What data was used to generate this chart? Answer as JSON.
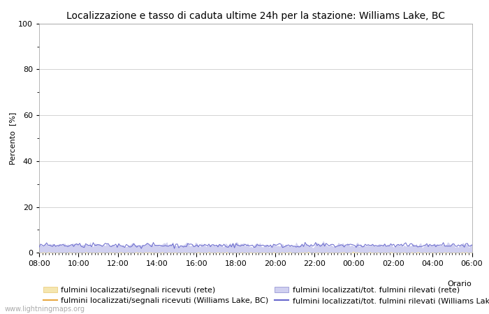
{
  "title": "Localizzazione e tasso di caduta ultime 24h per la stazione: Williams Lake, BC",
  "ylabel": "Percento  [%]",
  "xlabel_right": "Orario",
  "ylim": [
    0,
    100
  ],
  "yticks_major": [
    0,
    20,
    40,
    60,
    80,
    100
  ],
  "yticks_minor": [
    10,
    30,
    50,
    70,
    90
  ],
  "x_labels": [
    "08:00",
    "10:00",
    "12:00",
    "14:00",
    "16:00",
    "18:00",
    "20:00",
    "22:00",
    "00:00",
    "02:00",
    "04:00",
    "06:00"
  ],
  "n_points": 289,
  "area_rete_fill_color": "#f5e6b0",
  "area_rete_edge_color": "#e8c870",
  "area_tot_fill_color": "#d0d0f0",
  "area_tot_edge_color": "#8888cc",
  "station_line_color": "#e8a840",
  "station_line2_color": "#6666cc",
  "bg_color": "#ffffff",
  "grid_color": "#cccccc",
  "title_fontsize": 10,
  "axis_fontsize": 8,
  "tick_fontsize": 8,
  "legend_fontsize": 8,
  "watermark": "www.lightningmaps.org",
  "legend_labels": [
    "fulmini localizzati/segnali ricevuti (rete)",
    "fulmini localizzati/segnali ricevuti (Williams Lake, BC)",
    "fulmini localizzati/tot. fulmini rilevati (rete)",
    "fulmini localizzati/tot. fulmini rilevati (Williams Lake, BC)"
  ]
}
